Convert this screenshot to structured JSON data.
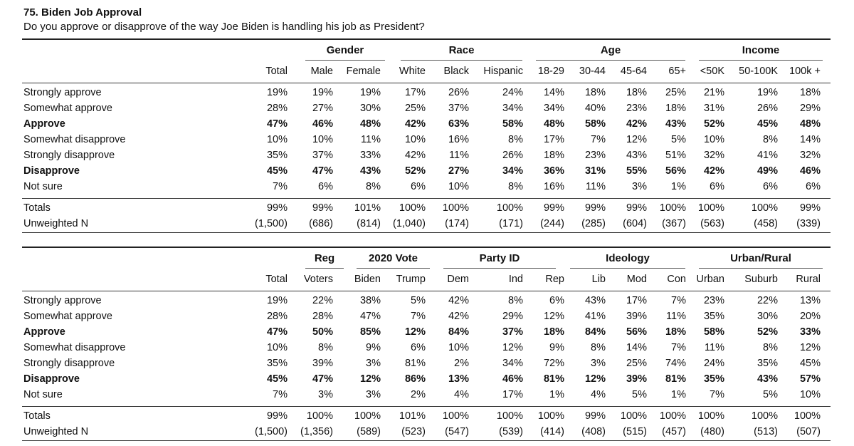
{
  "title": "75. Biden Job Approval",
  "question": "Do you approve or disapprove of the way Joe Biden is handling his job as President?",
  "tables": [
    {
      "groups": [
        "Gender",
        "Race",
        "Age",
        "Income"
      ],
      "columns": [
        "Total",
        "Male",
        "Female",
        "White",
        "Black",
        "Hispanic",
        "18-29",
        "30-44",
        "45-64",
        "65+",
        "<50K",
        "50-100K",
        "100k +"
      ],
      "rows": [
        {
          "label": "Strongly approve",
          "bold": false,
          "values": [
            "19%",
            "19%",
            "19%",
            "17%",
            "26%",
            "24%",
            "14%",
            "18%",
            "18%",
            "25%",
            "21%",
            "19%",
            "18%"
          ]
        },
        {
          "label": "Somewhat approve",
          "bold": false,
          "values": [
            "28%",
            "27%",
            "30%",
            "25%",
            "37%",
            "34%",
            "34%",
            "40%",
            "23%",
            "18%",
            "31%",
            "26%",
            "29%"
          ]
        },
        {
          "label": "Approve",
          "bold": true,
          "values": [
            "47%",
            "46%",
            "48%",
            "42%",
            "63%",
            "58%",
            "48%",
            "58%",
            "42%",
            "43%",
            "52%",
            "45%",
            "48%"
          ]
        },
        {
          "label": "Somewhat disapprove",
          "bold": false,
          "values": [
            "10%",
            "10%",
            "11%",
            "10%",
            "16%",
            "8%",
            "17%",
            "7%",
            "12%",
            "5%",
            "10%",
            "8%",
            "14%"
          ]
        },
        {
          "label": "Strongly disapprove",
          "bold": false,
          "values": [
            "35%",
            "37%",
            "33%",
            "42%",
            "11%",
            "26%",
            "18%",
            "23%",
            "43%",
            "51%",
            "32%",
            "41%",
            "32%"
          ]
        },
        {
          "label": "Disapprove",
          "bold": true,
          "values": [
            "45%",
            "47%",
            "43%",
            "52%",
            "27%",
            "34%",
            "36%",
            "31%",
            "55%",
            "56%",
            "42%",
            "49%",
            "46%"
          ]
        },
        {
          "label": "Not sure",
          "bold": false,
          "values": [
            "7%",
            "6%",
            "8%",
            "6%",
            "10%",
            "8%",
            "16%",
            "11%",
            "3%",
            "1%",
            "6%",
            "6%",
            "6%"
          ]
        }
      ],
      "totals": {
        "label": "Totals",
        "values": [
          "99%",
          "99%",
          "101%",
          "100%",
          "100%",
          "100%",
          "99%",
          "99%",
          "99%",
          "100%",
          "100%",
          "100%",
          "99%"
        ]
      },
      "unweighted": {
        "label": "Unweighted N",
        "values": [
          "(1,500)",
          "(686)",
          "(814)",
          "(1,040)",
          "(174)",
          "(171)",
          "(244)",
          "(285)",
          "(604)",
          "(367)",
          "(563)",
          "(458)",
          "(339)"
        ]
      }
    },
    {
      "groups": [
        "Reg",
        "2020 Vote",
        "Party ID",
        "Ideology",
        "Urban/Rural"
      ],
      "columns": [
        "Total",
        "Voters",
        "Biden",
        "Trump",
        "Dem",
        "Ind",
        "Rep",
        "Lib",
        "Mod",
        "Con",
        "Urban",
        "Suburb",
        "Rural"
      ],
      "rows": [
        {
          "label": "Strongly approve",
          "bold": false,
          "values": [
            "19%",
            "22%",
            "38%",
            "5%",
            "42%",
            "8%",
            "6%",
            "43%",
            "17%",
            "7%",
            "23%",
            "22%",
            "13%"
          ]
        },
        {
          "label": "Somewhat approve",
          "bold": false,
          "values": [
            "28%",
            "28%",
            "47%",
            "7%",
            "42%",
            "29%",
            "12%",
            "41%",
            "39%",
            "11%",
            "35%",
            "30%",
            "20%"
          ]
        },
        {
          "label": "Approve",
          "bold": true,
          "values": [
            "47%",
            "50%",
            "85%",
            "12%",
            "84%",
            "37%",
            "18%",
            "84%",
            "56%",
            "18%",
            "58%",
            "52%",
            "33%"
          ]
        },
        {
          "label": "Somewhat disapprove",
          "bold": false,
          "values": [
            "10%",
            "8%",
            "9%",
            "6%",
            "10%",
            "12%",
            "9%",
            "8%",
            "14%",
            "7%",
            "11%",
            "8%",
            "12%"
          ]
        },
        {
          "label": "Strongly disapprove",
          "bold": false,
          "values": [
            "35%",
            "39%",
            "3%",
            "81%",
            "2%",
            "34%",
            "72%",
            "3%",
            "25%",
            "74%",
            "24%",
            "35%",
            "45%"
          ]
        },
        {
          "label": "Disapprove",
          "bold": true,
          "values": [
            "45%",
            "47%",
            "12%",
            "86%",
            "13%",
            "46%",
            "81%",
            "12%",
            "39%",
            "81%",
            "35%",
            "43%",
            "57%"
          ]
        },
        {
          "label": "Not sure",
          "bold": false,
          "values": [
            "7%",
            "3%",
            "3%",
            "2%",
            "4%",
            "17%",
            "1%",
            "4%",
            "5%",
            "1%",
            "7%",
            "5%",
            "10%"
          ]
        }
      ],
      "totals": {
        "label": "Totals",
        "values": [
          "99%",
          "100%",
          "100%",
          "101%",
          "100%",
          "100%",
          "100%",
          "99%",
          "100%",
          "100%",
          "100%",
          "100%",
          "100%"
        ]
      },
      "unweighted": {
        "label": "Unweighted N",
        "values": [
          "(1,500)",
          "(1,356)",
          "(589)",
          "(523)",
          "(547)",
          "(539)",
          "(414)",
          "(408)",
          "(515)",
          "(457)",
          "(480)",
          "(513)",
          "(507)"
        ]
      }
    }
  ]
}
